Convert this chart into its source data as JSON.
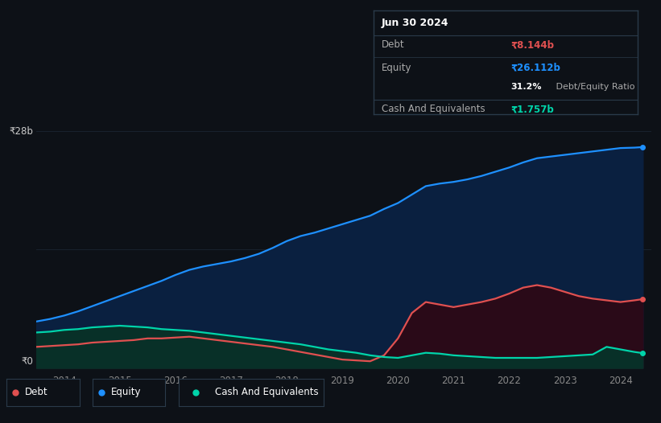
{
  "background_color": "#0d1117",
  "plot_bg_color": "#0d1117",
  "equity_color": "#1e90ff",
  "debt_color": "#e05050",
  "cash_color": "#00d4aa",
  "equity_fill_color": "#0a2040",
  "debt_fill_color": "#2a0a18",
  "cash_fill_color": "#083028",
  "grid_color": "#1e2a38",
  "tooltip_bg": "#0d1117",
  "tooltip_border": "#2a3a4a",
  "xlabel_ticks": [
    2014,
    2015,
    2016,
    2017,
    2018,
    2019,
    2020,
    2021,
    2022,
    2023,
    2024
  ],
  "years": [
    2013.5,
    2013.75,
    2014.0,
    2014.25,
    2014.5,
    2014.75,
    2015.0,
    2015.25,
    2015.5,
    2015.75,
    2016.0,
    2016.25,
    2016.5,
    2016.75,
    2017.0,
    2017.25,
    2017.5,
    2017.75,
    2018.0,
    2018.25,
    2018.5,
    2018.75,
    2019.0,
    2019.25,
    2019.5,
    2019.75,
    2020.0,
    2020.25,
    2020.5,
    2020.75,
    2021.0,
    2021.25,
    2021.5,
    2021.75,
    2022.0,
    2022.25,
    2022.5,
    2022.75,
    2023.0,
    2023.25,
    2023.5,
    2023.75,
    2024.0,
    2024.25,
    2024.4
  ],
  "equity": [
    5.5,
    5.8,
    6.2,
    6.7,
    7.3,
    7.9,
    8.5,
    9.1,
    9.7,
    10.3,
    11.0,
    11.6,
    12.0,
    12.3,
    12.6,
    13.0,
    13.5,
    14.2,
    15.0,
    15.6,
    16.0,
    16.5,
    17.0,
    17.5,
    18.0,
    18.8,
    19.5,
    20.5,
    21.5,
    21.8,
    22.0,
    22.3,
    22.7,
    23.2,
    23.7,
    24.3,
    24.8,
    25.0,
    25.2,
    25.4,
    25.6,
    25.8,
    26.0,
    26.05,
    26.112
  ],
  "debt": [
    2.5,
    2.6,
    2.7,
    2.8,
    3.0,
    3.1,
    3.2,
    3.3,
    3.5,
    3.5,
    3.6,
    3.7,
    3.5,
    3.3,
    3.1,
    2.9,
    2.7,
    2.5,
    2.2,
    1.9,
    1.6,
    1.3,
    1.0,
    0.9,
    0.8,
    1.5,
    3.5,
    6.5,
    7.8,
    7.5,
    7.2,
    7.5,
    7.8,
    8.2,
    8.8,
    9.5,
    9.8,
    9.5,
    9.0,
    8.5,
    8.2,
    8.0,
    7.8,
    8.0,
    8.144
  ],
  "cash": [
    4.2,
    4.3,
    4.5,
    4.6,
    4.8,
    4.9,
    5.0,
    4.9,
    4.8,
    4.6,
    4.5,
    4.4,
    4.2,
    4.0,
    3.8,
    3.6,
    3.4,
    3.2,
    3.0,
    2.8,
    2.5,
    2.2,
    2.0,
    1.8,
    1.5,
    1.3,
    1.2,
    1.5,
    1.8,
    1.7,
    1.5,
    1.4,
    1.3,
    1.2,
    1.2,
    1.2,
    1.2,
    1.3,
    1.4,
    1.5,
    1.6,
    2.5,
    2.2,
    1.9,
    1.757
  ],
  "legend_items": [
    "Debt",
    "Equity",
    "Cash And Equivalents"
  ],
  "legend_colors": [
    "#e05050",
    "#1e90ff",
    "#00d4aa"
  ],
  "tooltip_date": "Jun 30 2024",
  "tooltip_debt_label": "Debt",
  "tooltip_debt_value": "₹8.144b",
  "tooltip_equity_label": "Equity",
  "tooltip_equity_value": "₹26.112b",
  "tooltip_ratio": "31.2%",
  "tooltip_ratio_label": " Debt/Equity Ratio",
  "tooltip_cash_label": "Cash And Equivalents",
  "tooltip_cash_value": "₹1.757b",
  "ylabel_28b": "₹28b",
  "ylabel_0": "₹0",
  "ylim": [
    0,
    30
  ],
  "xlim": [
    2013.5,
    2024.55
  ]
}
